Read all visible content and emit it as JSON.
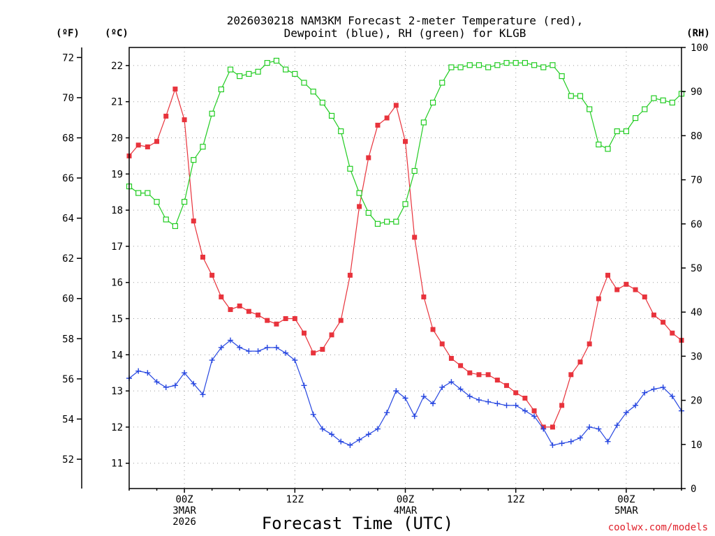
{
  "chart_data": {
    "type": "line",
    "title_line1": "2026030218 NAM3KM Forecast 2-meter Temperature (red),",
    "title_line2": "Dewpoint (blue), RH (green) for KLGB",
    "xlabel": "Forecast Time (UTC)",
    "credit": "coolwx.com/models",
    "x_units": "forecast hour",
    "xlim": [
      -6,
      54
    ],
    "axes": {
      "fahrenheit": {
        "unit_label": "(ºF)",
        "ticks": [
          52,
          54,
          56,
          58,
          60,
          62,
          64,
          66,
          68,
          70,
          72
        ]
      },
      "celsius": {
        "unit_label": "(ºC)",
        "ylim": [
          10.3,
          22.5
        ],
        "ticks": [
          11,
          12,
          13,
          14,
          15,
          16,
          17,
          18,
          19,
          20,
          21,
          22
        ]
      },
      "rh": {
        "unit_label": "(RH)",
        "ylim": [
          0,
          100
        ],
        "ticks": [
          0,
          10,
          20,
          30,
          40,
          50,
          60,
          70,
          80,
          90,
          100
        ]
      }
    },
    "x_ticks": [
      {
        "x": 0,
        "lines": [
          "00Z",
          "3MAR",
          "2026"
        ]
      },
      {
        "x": 12,
        "lines": [
          "12Z"
        ]
      },
      {
        "x": 24,
        "lines": [
          "00Z",
          "4MAR"
        ]
      },
      {
        "x": 36,
        "lines": [
          "12Z"
        ]
      },
      {
        "x": 48,
        "lines": [
          "00Z",
          "5MAR"
        ]
      }
    ],
    "series": [
      {
        "name": "2-meter Temperature",
        "axis": "celsius",
        "color": "#e8333c",
        "marker": "filled-square",
        "x": [
          -6,
          -5,
          -4,
          -3,
          -2,
          -1,
          0,
          1,
          2,
          3,
          4,
          5,
          6,
          7,
          8,
          9,
          10,
          11,
          12,
          13,
          14,
          15,
          16,
          17,
          18,
          19,
          20,
          21,
          22,
          23,
          24,
          25,
          26,
          27,
          28,
          29,
          30,
          31,
          32,
          33,
          34,
          35,
          36,
          37,
          38,
          39,
          40,
          41,
          42,
          43,
          44,
          45,
          46,
          47,
          48,
          49,
          50,
          51,
          52,
          53,
          54
        ],
        "values": [
          19.5,
          19.8,
          19.75,
          19.9,
          20.6,
          21.35,
          20.5,
          17.7,
          16.7,
          16.2,
          15.6,
          15.25,
          15.35,
          15.2,
          15.1,
          14.95,
          14.85,
          15.0,
          15.0,
          14.6,
          14.05,
          14.15,
          14.55,
          14.95,
          16.2,
          18.1,
          19.45,
          20.35,
          20.55,
          20.9,
          19.9,
          17.25,
          15.6,
          14.7,
          14.3,
          13.9,
          13.7,
          13.5,
          13.45,
          13.45,
          13.3,
          13.15,
          12.95,
          12.8,
          12.45,
          12.0,
          12.0,
          12.6,
          13.45,
          13.8,
          14.3,
          15.55,
          16.2,
          15.8,
          15.95,
          15.8,
          15.6,
          15.1,
          14.9,
          14.6,
          14.4
        ]
      },
      {
        "name": "Dewpoint",
        "axis": "celsius",
        "color": "#2646e0",
        "marker": "plus",
        "x": [
          -6,
          -5,
          -4,
          -3,
          -2,
          -1,
          0,
          1,
          2,
          3,
          4,
          5,
          6,
          7,
          8,
          9,
          10,
          11,
          12,
          13,
          14,
          15,
          16,
          17,
          18,
          19,
          20,
          21,
          22,
          23,
          24,
          25,
          26,
          27,
          28,
          29,
          30,
          31,
          32,
          33,
          34,
          35,
          36,
          37,
          38,
          39,
          40,
          41,
          42,
          43,
          44,
          45,
          46,
          47,
          48,
          49,
          50,
          51,
          52,
          53,
          54
        ],
        "values": [
          13.35,
          13.55,
          13.5,
          13.25,
          13.1,
          13.15,
          13.5,
          13.2,
          12.9,
          13.85,
          14.2,
          14.4,
          14.2,
          14.1,
          14.1,
          14.2,
          14.2,
          14.05,
          13.85,
          13.15,
          12.35,
          11.95,
          11.8,
          11.6,
          11.5,
          11.65,
          11.8,
          11.95,
          12.4,
          13.0,
          12.8,
          12.3,
          12.85,
          12.65,
          13.1,
          13.25,
          13.05,
          12.85,
          12.75,
          12.7,
          12.65,
          12.6,
          12.6,
          12.45,
          12.3,
          11.95,
          11.5,
          11.55,
          11.6,
          11.7,
          12.0,
          11.95,
          11.6,
          12.05,
          12.4,
          12.6,
          12.95,
          13.05,
          13.1,
          12.85,
          12.45
        ]
      },
      {
        "name": "RH",
        "axis": "rh",
        "color": "#22cc22",
        "marker": "open-square",
        "x": [
          -6,
          -5,
          -4,
          -3,
          -2,
          -1,
          0,
          1,
          2,
          3,
          4,
          5,
          6,
          7,
          8,
          9,
          10,
          11,
          12,
          13,
          14,
          15,
          16,
          17,
          18,
          19,
          20,
          21,
          22,
          23,
          24,
          25,
          26,
          27,
          28,
          29,
          30,
          31,
          32,
          33,
          34,
          35,
          36,
          37,
          38,
          39,
          40,
          41,
          42,
          43,
          44,
          45,
          46,
          47,
          48,
          49,
          50,
          51,
          52,
          53,
          54
        ],
        "values": [
          68.5,
          67,
          67,
          65,
          61,
          59.5,
          65,
          74.5,
          77.5,
          85,
          90.5,
          95,
          93.5,
          94,
          94.5,
          96.5,
          97,
          95,
          94,
          92,
          90,
          87.5,
          84.5,
          81,
          72.5,
          67,
          62.5,
          60,
          60.5,
          60.5,
          64.5,
          72,
          83,
          87.5,
          92,
          95.5,
          95.5,
          96,
          96,
          95.5,
          96,
          96.5,
          96.5,
          96.5,
          96,
          95.5,
          96,
          93.5,
          89,
          89,
          86,
          78,
          77,
          81,
          81,
          84,
          86,
          88.5,
          88,
          87.5,
          89.5
        ]
      }
    ]
  }
}
